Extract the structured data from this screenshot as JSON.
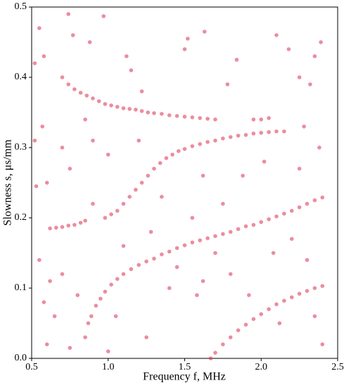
{
  "chart_data": {
    "type": "scatter",
    "xlabel": "Frequency f, MHz",
    "ylabel": "Slowness  s, μs/mm",
    "color": "#d9304f",
    "xlim": [
      0.5,
      2.5
    ],
    "ylim": [
      0,
      0.5
    ],
    "xticks": [
      0.5,
      {
        "value": 1,
        "label": "1.0"
      },
      1.5,
      {
        "value": 2,
        "label": "2.0"
      },
      2.5
    ],
    "yticks": [
      {
        "value": 0,
        "label": "0.0"
      },
      0.1,
      0.2,
      0.3,
      0.4,
      0.5
    ],
    "x": [
      0.7,
      0.74,
      0.78,
      0.82,
      0.86,
      0.9,
      0.94,
      0.98,
      1.02,
      1.06,
      1.1,
      1.14,
      1.18,
      1.22,
      1.26,
      1.3,
      1.35,
      1.4,
      1.45,
      1.5,
      1.55,
      1.6,
      1.65,
      1.7,
      1.95,
      2.0,
      2.05,
      0.98,
      1.02,
      1.06,
      1.1,
      1.14,
      1.18,
      1.22,
      1.26,
      1.3,
      1.34,
      1.38,
      1.42,
      1.46,
      1.5,
      1.55,
      1.6,
      1.65,
      1.7,
      1.75,
      1.8,
      1.85,
      1.9,
      1.95,
      2.0,
      2.05,
      2.1,
      2.15,
      0.62,
      0.66,
      0.7,
      0.74,
      0.78,
      0.82,
      0.85,
      0.87,
      0.89,
      0.92,
      0.95,
      0.98,
      1.02,
      1.06,
      1.1,
      1.15,
      1.2,
      1.25,
      1.3,
      1.35,
      1.4,
      1.45,
      1.5,
      1.55,
      1.6,
      1.65,
      1.7,
      1.75,
      1.8,
      1.85,
      1.9,
      1.95,
      2.0,
      2.05,
      2.1,
      2.15,
      2.2,
      2.25,
      2.3,
      2.35,
      2.4,
      1.67,
      1.7,
      1.75,
      1.8,
      1.85,
      1.9,
      1.95,
      2.0,
      2.05,
      2.1,
      2.15,
      2.2,
      2.25,
      2.3,
      2.35,
      2.4,
      0.52,
      0.55,
      0.58,
      0.74,
      0.97,
      0.77,
      0.88,
      1.12,
      1.15,
      1.22,
      1.5,
      1.52,
      1.63,
      1.78,
      1.84,
      2.1,
      2.18,
      2.25,
      2.35,
      2.39,
      0.52,
      0.57,
      0.6,
      0.55,
      0.58,
      0.62,
      0.6,
      0.65,
      0.7,
      0.75,
      0.8,
      0.85,
      0.7,
      0.75,
      0.85,
      0.9,
      1.0,
      1.05,
      1.1,
      1.2,
      1.28,
      1.35,
      1.4,
      1.45,
      1.55,
      1.62,
      1.7,
      1.75,
      1.8,
      1.88,
      1.92,
      2.02,
      2.08,
      2.12,
      2.2,
      2.25,
      2.3,
      2.35,
      2.38,
      2.4,
      1.58,
      1.62,
      1.0,
      1.25,
      2.28,
      2.32,
      0.53,
      0.9
    ],
    "values": [
      0.4,
      0.39,
      0.383,
      0.378,
      0.374,
      0.37,
      0.366,
      0.362,
      0.36,
      0.358,
      0.356,
      0.355,
      0.354,
      0.352,
      0.35,
      0.349,
      0.348,
      0.346,
      0.345,
      0.344,
      0.343,
      0.342,
      0.341,
      0.34,
      0.34,
      0.34,
      0.342,
      0.2,
      0.205,
      0.21,
      0.22,
      0.23,
      0.24,
      0.25,
      0.26,
      0.27,
      0.278,
      0.285,
      0.29,
      0.295,
      0.298,
      0.302,
      0.305,
      0.308,
      0.31,
      0.313,
      0.315,
      0.317,
      0.318,
      0.32,
      0.321,
      0.322,
      0.323,
      0.323,
      0.185,
      0.186,
      0.187,
      0.189,
      0.19,
      0.193,
      0.196,
      0.05,
      0.06,
      0.075,
      0.085,
      0.095,
      0.105,
      0.113,
      0.12,
      0.127,
      0.133,
      0.138,
      0.142,
      0.148,
      0.152,
      0.157,
      0.161,
      0.165,
      0.168,
      0.171,
      0.174,
      0.177,
      0.18,
      0.184,
      0.188,
      0.19,
      0.194,
      0.198,
      0.202,
      0.206,
      0.21,
      0.215,
      0.22,
      0.225,
      0.229,
      0,
      0.008,
      0.02,
      0.03,
      0.04,
      0.048,
      0.056,
      0.063,
      0.07,
      0.077,
      0.082,
      0.087,
      0.092,
      0.096,
      0.1,
      0.103,
      0.42,
      0.47,
      0.43,
      0.49,
      0.487,
      0.46,
      0.45,
      0.43,
      0.41,
      0.38,
      0.44,
      0.455,
      0.465,
      0.39,
      0.425,
      0.46,
      0.44,
      0.4,
      0.43,
      0.45,
      0.31,
      0.33,
      0.25,
      0.14,
      0.08,
      0.11,
      0.02,
      0.06,
      0.12,
      0.015,
      0.09,
      0.03,
      0.3,
      0.27,
      0.34,
      0.22,
      0.29,
      0.06,
      0.16,
      0.31,
      0.18,
      0.23,
      0.1,
      0.13,
      0.2,
      0.26,
      0.15,
      0.22,
      0.12,
      0.26,
      0.09,
      0.28,
      0.15,
      0.05,
      0.17,
      0.27,
      0.14,
      0.06,
      0.3,
      0.02,
      0.09,
      0.11,
      0.01,
      0.03,
      0.33,
      0.39,
      0.245,
      0.31
    ]
  }
}
